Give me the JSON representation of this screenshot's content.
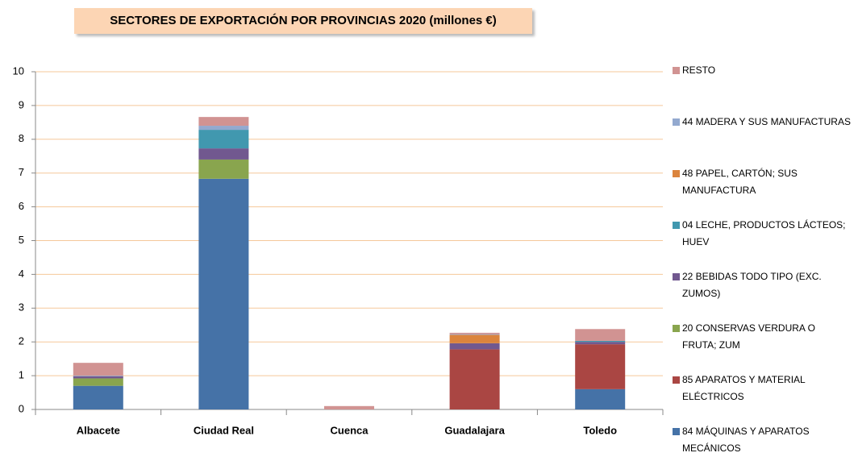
{
  "chart_data": {
    "type": "stacked_bar",
    "title": "SECTORES DE EXPORTACIÓN POR PROVINCIAS 2020 (millones €)",
    "categories": [
      "Albacete",
      "Ciudad Real",
      "Cuenca",
      "Guadalajara",
      "Toledo"
    ],
    "series": [
      {
        "name": "84 MÁQUINAS Y APARATOS MECÁNICOS",
        "color": "#4572a7",
        "values": [
          0.7,
          6.83,
          0,
          0,
          0.6
        ]
      },
      {
        "name": "85 APARATOS Y MATERIAL ELÉCTRICOS",
        "color": "#aa4643",
        "values": [
          0,
          0,
          0,
          1.78,
          1.33
        ]
      },
      {
        "name": "20 CONSERVAS VERDURA O FRUTA; ZUM",
        "color": "#89a54e",
        "values": [
          0.22,
          0.57,
          0,
          0,
          0
        ]
      },
      {
        "name": "22 BEBIDAS TODO TIPO (EXC. ZUMOS)",
        "color": "#71588f",
        "values": [
          0.06,
          0.33,
          0,
          0.18,
          0.07
        ]
      },
      {
        "name": "04 LECHE, PRODUCTOS LÁCTEOS; HUEV",
        "color": "#4198af",
        "values": [
          0,
          0.55,
          0,
          0,
          0.03
        ]
      },
      {
        "name": "48 PAPEL, CARTÓN; SUS MANUFACTURA",
        "color": "#db843d",
        "values": [
          0,
          0,
          0,
          0.25,
          0
        ]
      },
      {
        "name": "44 MADERA Y SUS MANUFACTURAS",
        "color": "#93a9cf",
        "values": [
          0.02,
          0.12,
          0,
          0.02,
          0
        ]
      },
      {
        "name": "RESTO",
        "color": "#d19392",
        "values": [
          0.38,
          0.26,
          0.1,
          0.04,
          0.35
        ]
      }
    ],
    "ylim": [
      0,
      10
    ],
    "yticks": [
      0,
      1,
      2,
      3,
      4,
      5,
      6,
      7,
      8,
      9,
      10
    ],
    "grid": true,
    "legend": "right"
  }
}
